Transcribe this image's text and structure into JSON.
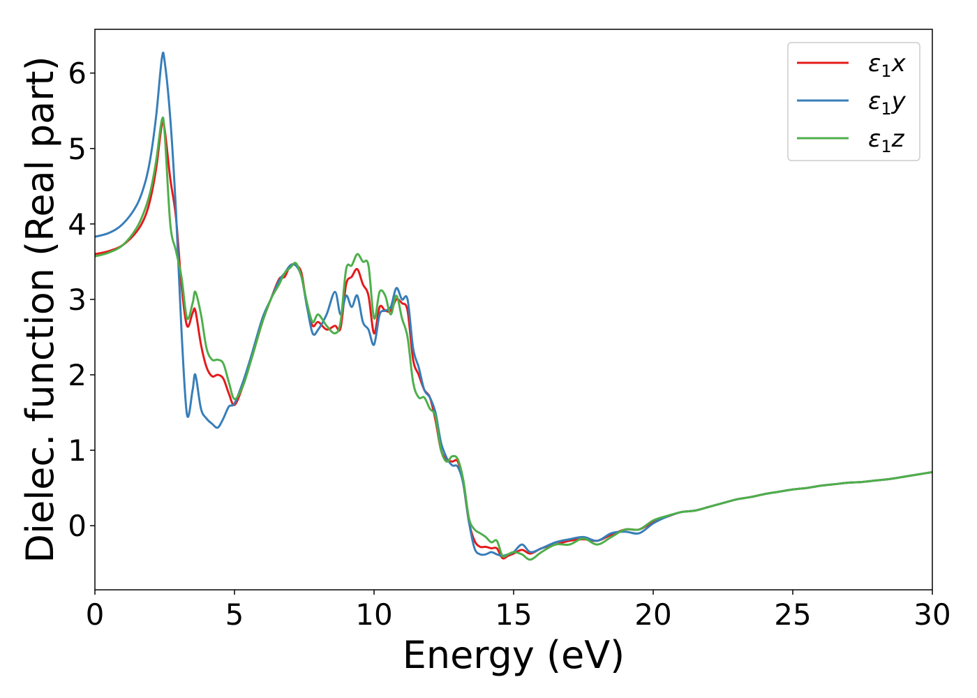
{
  "chart_data": {
    "type": "line",
    "xlabel": "Energy (eV)",
    "ylabel": "Dielec. function (Real part)",
    "xlim": [
      0,
      30
    ],
    "ylim": [
      -0.85,
      6.58
    ],
    "xticks": [
      0,
      5,
      10,
      15,
      20,
      25,
      30
    ],
    "yticks": [
      0,
      1,
      2,
      3,
      4,
      5,
      6
    ],
    "grid": false,
    "legend_position": "top-right",
    "series": [
      {
        "name": "ε1x",
        "legend_base": "ε",
        "legend_sub": "1",
        "legend_suffix": "x",
        "color": "#e41a1c",
        "x": [
          0,
          0.5,
          1.0,
          1.5,
          1.8,
          2.0,
          2.2,
          2.4,
          2.5,
          2.7,
          2.9,
          3.1,
          3.3,
          3.5,
          3.6,
          3.8,
          4.0,
          4.2,
          4.4,
          4.6,
          4.8,
          5.0,
          5.3,
          5.6,
          6.0,
          6.3,
          6.6,
          6.8,
          7.0,
          7.2,
          7.4,
          7.6,
          7.8,
          8.0,
          8.3,
          8.6,
          8.8,
          9.0,
          9.2,
          9.4,
          9.6,
          9.8,
          10.0,
          10.2,
          10.4,
          10.6,
          10.8,
          11.0,
          11.2,
          11.4,
          11.6,
          11.8,
          12.0,
          12.2,
          12.4,
          12.6,
          12.8,
          13.0,
          13.2,
          13.4,
          13.6,
          13.8,
          14.0,
          14.2,
          14.4,
          14.6,
          14.8,
          15.0,
          15.3,
          15.6,
          16.0,
          16.5,
          17.0,
          17.5,
          18.0,
          18.5,
          19.0,
          19.5,
          20.0,
          20.5,
          21.0,
          21.5,
          22.0,
          22.5,
          23.0,
          23.5,
          24.0,
          24.5,
          25.0,
          25.5,
          26.0,
          26.5,
          27.0,
          27.5,
          28.0,
          28.5,
          29.0,
          29.5,
          30.0
        ],
        "y": [
          3.6,
          3.64,
          3.72,
          3.9,
          4.1,
          4.35,
          4.75,
          5.32,
          5.25,
          4.6,
          4.1,
          3.2,
          2.65,
          2.82,
          2.85,
          2.4,
          2.1,
          1.98,
          2.0,
          1.95,
          1.75,
          1.6,
          1.85,
          2.2,
          2.7,
          3.0,
          3.27,
          3.3,
          3.45,
          3.45,
          3.35,
          2.9,
          2.65,
          2.7,
          2.6,
          2.65,
          2.62,
          3.2,
          3.3,
          3.4,
          3.2,
          3.05,
          2.55,
          2.9,
          2.85,
          2.85,
          3.0,
          2.95,
          2.85,
          2.2,
          2.0,
          1.8,
          1.7,
          1.4,
          1.0,
          0.88,
          0.85,
          0.85,
          0.55,
          0.05,
          -0.2,
          -0.28,
          -0.28,
          -0.3,
          -0.3,
          -0.43,
          -0.4,
          -0.37,
          -0.32,
          -0.37,
          -0.3,
          -0.25,
          -0.2,
          -0.18,
          -0.2,
          -0.12,
          -0.05,
          -0.05,
          0.05,
          0.12,
          0.18,
          0.2,
          0.25,
          0.3,
          0.35,
          0.38,
          0.42,
          0.45,
          0.48,
          0.5,
          0.53,
          0.55,
          0.57,
          0.58,
          0.6,
          0.62,
          0.65,
          0.68,
          0.71
        ]
      },
      {
        "name": "ε1y",
        "legend_base": "ε",
        "legend_sub": "1",
        "legend_suffix": "y",
        "color": "#377eb8",
        "x": [
          0,
          0.5,
          1.0,
          1.5,
          1.8,
          2.0,
          2.2,
          2.4,
          2.5,
          2.7,
          2.9,
          3.1,
          3.3,
          3.5,
          3.6,
          3.8,
          4.0,
          4.2,
          4.4,
          4.6,
          4.8,
          5.0,
          5.3,
          5.6,
          6.0,
          6.3,
          6.6,
          6.8,
          7.0,
          7.2,
          7.4,
          7.6,
          7.8,
          8.0,
          8.3,
          8.6,
          8.8,
          9.0,
          9.2,
          9.4,
          9.6,
          9.8,
          10.0,
          10.2,
          10.4,
          10.6,
          10.8,
          11.0,
          11.2,
          11.4,
          11.6,
          11.8,
          12.0,
          12.2,
          12.4,
          12.6,
          12.8,
          13.0,
          13.2,
          13.4,
          13.6,
          13.8,
          14.0,
          14.2,
          14.4,
          14.6,
          14.8,
          15.0,
          15.3,
          15.6,
          16.0,
          16.5,
          17.0,
          17.5,
          18.0,
          18.5,
          19.0,
          19.5,
          20.0,
          20.5,
          21.0,
          21.5,
          22.0,
          22.5,
          23.0,
          23.5,
          24.0,
          24.5,
          25.0,
          25.5,
          26.0,
          26.5,
          27.0,
          27.5,
          28.0,
          28.5,
          29.0,
          29.5,
          30.0
        ],
        "y": [
          3.83,
          3.88,
          4.0,
          4.25,
          4.55,
          4.9,
          5.45,
          6.2,
          6.15,
          5.4,
          4.2,
          2.6,
          1.47,
          1.8,
          2.0,
          1.55,
          1.42,
          1.35,
          1.3,
          1.42,
          1.58,
          1.62,
          1.9,
          2.25,
          2.75,
          3.0,
          3.25,
          3.35,
          3.45,
          3.45,
          3.3,
          2.9,
          2.55,
          2.6,
          2.8,
          3.1,
          2.8,
          3.05,
          2.9,
          3.05,
          2.7,
          2.6,
          2.4,
          2.8,
          2.85,
          2.9,
          3.15,
          3.0,
          3.0,
          2.35,
          2.1,
          1.8,
          1.7,
          1.5,
          1.1,
          0.9,
          0.8,
          0.78,
          0.55,
          0.05,
          -0.3,
          -0.38,
          -0.38,
          -0.35,
          -0.38,
          -0.4,
          -0.38,
          -0.35,
          -0.25,
          -0.35,
          -0.3,
          -0.22,
          -0.18,
          -0.15,
          -0.2,
          -0.1,
          -0.08,
          -0.1,
          0.03,
          0.12,
          0.18,
          0.2,
          0.25,
          0.3,
          0.35,
          0.38,
          0.42,
          0.45,
          0.48,
          0.5,
          0.53,
          0.55,
          0.57,
          0.58,
          0.6,
          0.62,
          0.65,
          0.68,
          0.71
        ]
      },
      {
        "name": "ε1z",
        "legend_base": "ε",
        "legend_sub": "1",
        "legend_suffix": "z",
        "color": "#4daf4a",
        "x": [
          0,
          0.5,
          1.0,
          1.5,
          1.8,
          2.0,
          2.2,
          2.4,
          2.5,
          2.7,
          2.9,
          3.1,
          3.3,
          3.5,
          3.6,
          3.8,
          4.0,
          4.2,
          4.4,
          4.6,
          4.8,
          5.0,
          5.3,
          5.6,
          6.0,
          6.3,
          6.6,
          6.8,
          7.0,
          7.2,
          7.4,
          7.6,
          7.8,
          8.0,
          8.3,
          8.6,
          8.8,
          9.0,
          9.2,
          9.4,
          9.6,
          9.8,
          10.0,
          10.2,
          10.4,
          10.6,
          10.8,
          11.0,
          11.2,
          11.4,
          11.6,
          11.8,
          12.0,
          12.2,
          12.4,
          12.6,
          12.8,
          13.0,
          13.2,
          13.4,
          13.6,
          13.8,
          14.0,
          14.2,
          14.4,
          14.6,
          14.8,
          15.0,
          15.3,
          15.6,
          16.0,
          16.5,
          17.0,
          17.5,
          18.0,
          18.5,
          19.0,
          19.5,
          20.0,
          20.5,
          21.0,
          21.5,
          22.0,
          22.5,
          23.0,
          23.5,
          24.0,
          24.5,
          25.0,
          25.5,
          26.0,
          26.5,
          27.0,
          27.5,
          28.0,
          28.5,
          29.0,
          29.5,
          30.0
        ],
        "y": [
          3.57,
          3.62,
          3.72,
          3.95,
          4.2,
          4.45,
          4.85,
          5.38,
          5.2,
          4.0,
          3.65,
          3.3,
          2.75,
          2.95,
          3.1,
          2.8,
          2.35,
          2.2,
          2.2,
          2.15,
          1.9,
          1.68,
          1.85,
          2.2,
          2.7,
          3.0,
          3.2,
          3.35,
          3.42,
          3.48,
          3.3,
          2.95,
          2.7,
          2.8,
          2.65,
          2.55,
          2.7,
          3.4,
          3.45,
          3.6,
          3.5,
          3.45,
          2.75,
          3.1,
          3.05,
          2.8,
          3.05,
          2.75,
          2.5,
          1.9,
          1.7,
          1.7,
          1.55,
          1.45,
          1.0,
          0.85,
          0.92,
          0.88,
          0.6,
          0.1,
          -0.05,
          -0.1,
          -0.15,
          -0.22,
          -0.2,
          -0.4,
          -0.38,
          -0.35,
          -0.38,
          -0.45,
          -0.35,
          -0.25,
          -0.25,
          -0.17,
          -0.25,
          -0.15,
          -0.05,
          -0.05,
          0.07,
          0.13,
          0.18,
          0.2,
          0.25,
          0.3,
          0.35,
          0.38,
          0.42,
          0.45,
          0.48,
          0.5,
          0.53,
          0.55,
          0.57,
          0.58,
          0.6,
          0.62,
          0.65,
          0.68,
          0.71
        ]
      }
    ]
  }
}
